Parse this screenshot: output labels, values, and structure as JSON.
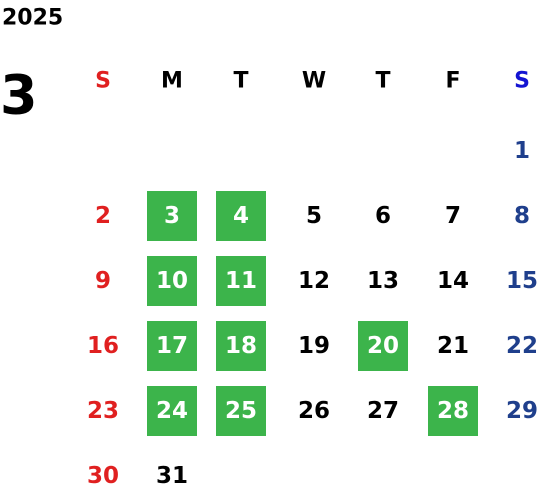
{
  "year": "2025",
  "month": "3",
  "weekdays": [
    "S",
    "M",
    "T",
    "W",
    "T",
    "F",
    "S"
  ],
  "weekday_colors": [
    "#e02020",
    "#000000",
    "#000000",
    "#000000",
    "#000000",
    "#000000",
    "#1414d2"
  ],
  "day_colors": [
    "#e02020",
    "#000000",
    "#000000",
    "#000000",
    "#000000",
    "#000000",
    "#1f3f8c"
  ],
  "weeks": [
    [
      null,
      null,
      null,
      null,
      null,
      null,
      1
    ],
    [
      2,
      3,
      4,
      5,
      6,
      7,
      8
    ],
    [
      9,
      10,
      11,
      12,
      13,
      14,
      15
    ],
    [
      16,
      17,
      18,
      19,
      20,
      21,
      22
    ],
    [
      23,
      24,
      25,
      26,
      27,
      28,
      29
    ],
    [
      30,
      31,
      null,
      null,
      null,
      null,
      null
    ]
  ],
  "highlighted": [
    3,
    4,
    10,
    11,
    17,
    18,
    20,
    24,
    25,
    28
  ],
  "highlight_color": "#3cb44b",
  "highlight_text_color": "#ffffff"
}
